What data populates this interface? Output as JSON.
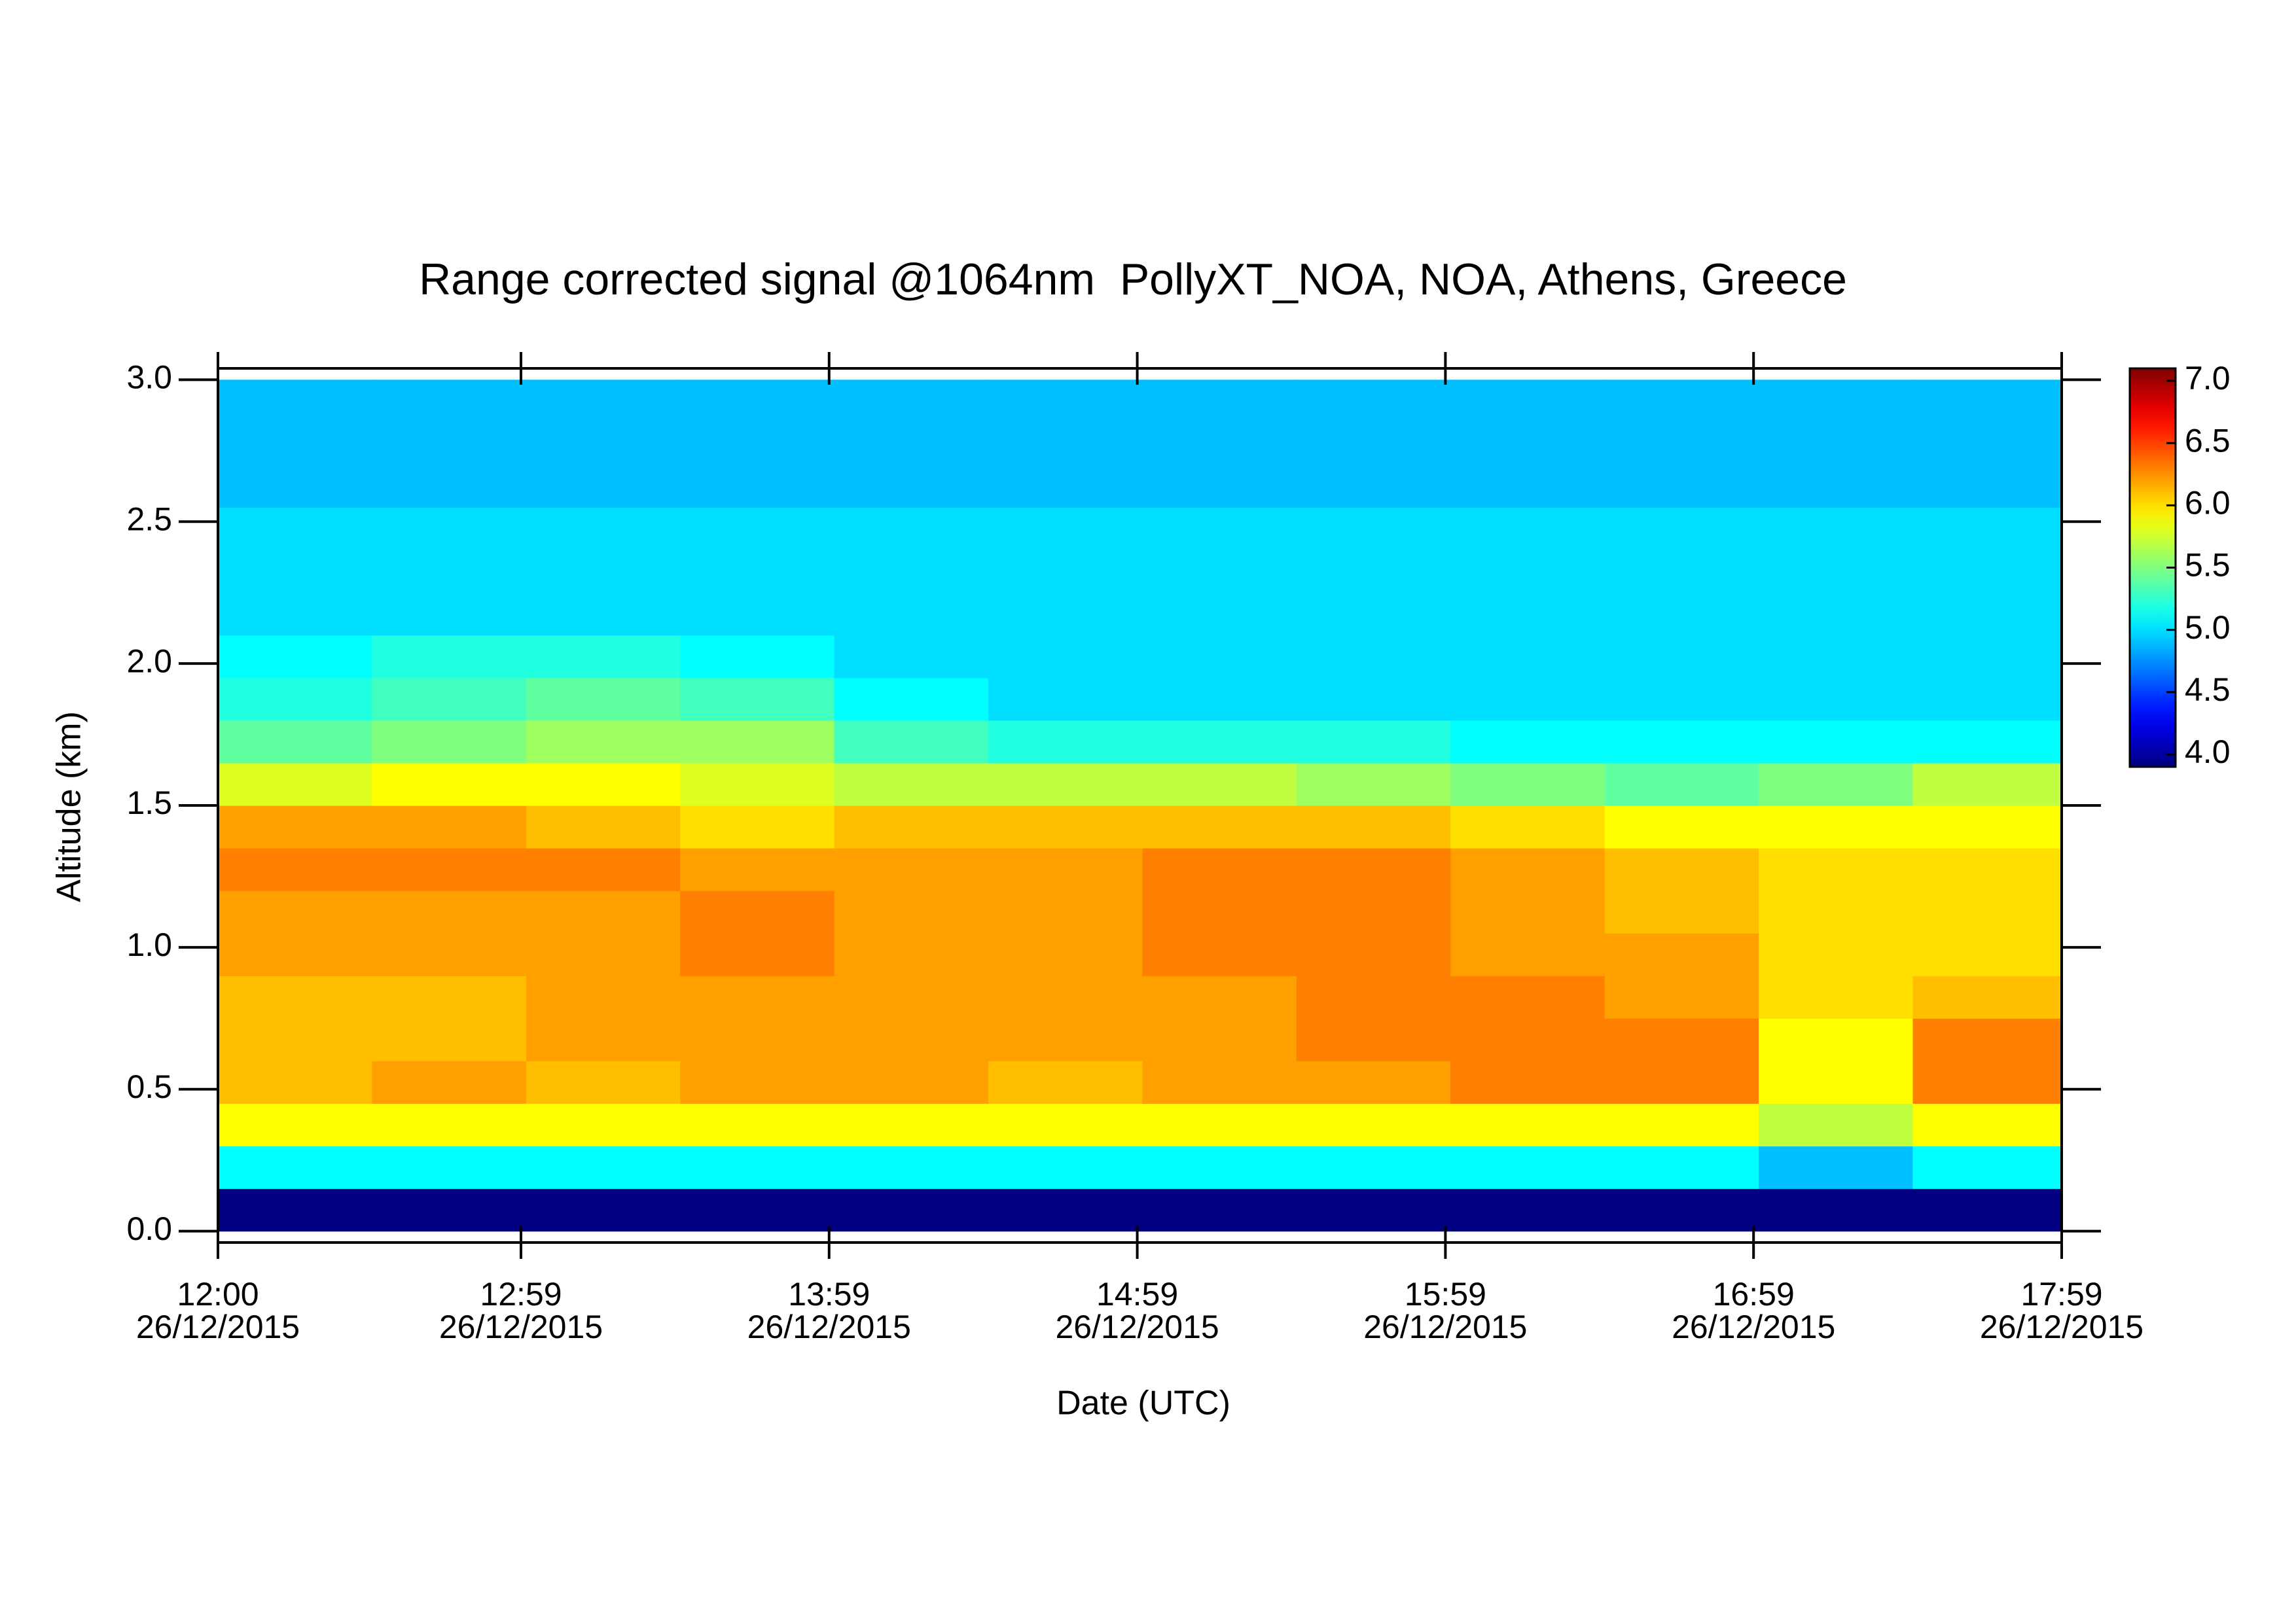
{
  "chart_data": {
    "type": "heatmap",
    "title": "Range corrected signal @1064nm  PollyXT_NOA, NOA, Athens, Greece",
    "x_label": "Date (UTC)",
    "y_label": "Altitude (km)",
    "colormap": "jet",
    "x": [
      "2015-12-26T12:15",
      "2015-12-26T12:45",
      "2015-12-26T13:15",
      "2015-12-26T13:45",
      "2015-12-26T14:15",
      "2015-12-26T14:45",
      "2015-12-26T15:15",
      "2015-12-26T15:45",
      "2015-12-26T16:15",
      "2015-12-26T16:45",
      "2015-12-26T17:15",
      "2015-12-26T17:45"
    ],
    "y": [
      0.075,
      0.225,
      0.375,
      0.525,
      0.675,
      0.825,
      0.975,
      1.125,
      1.275,
      1.425,
      1.575,
      1.725,
      1.875,
      2.025,
      2.175,
      2.325,
      2.475,
      2.625,
      2.775,
      2.925
    ],
    "z": [
      [
        3.9,
        3.9,
        3.9,
        3.9,
        3.9,
        3.9,
        3.9,
        3.9,
        3.9,
        3.9,
        3.9,
        3.9
      ],
      [
        5.1,
        5.1,
        5.1,
        5.1,
        5.1,
        5.1,
        5.1,
        5.1,
        5.1,
        5.1,
        4.9,
        5.1
      ],
      [
        5.9,
        5.9,
        5.9,
        5.9,
        5.9,
        5.9,
        5.9,
        5.9,
        5.9,
        5.9,
        5.7,
        5.9
      ],
      [
        6.1,
        6.2,
        6.1,
        6.2,
        6.2,
        6.1,
        6.2,
        6.2,
        6.3,
        6.3,
        5.9,
        6.3
      ],
      [
        6.1,
        6.1,
        6.2,
        6.2,
        6.2,
        6.2,
        6.2,
        6.3,
        6.3,
        6.3,
        5.9,
        6.3
      ],
      [
        6.1,
        6.1,
        6.2,
        6.2,
        6.2,
        6.2,
        6.2,
        6.3,
        6.3,
        6.2,
        6.0,
        6.1
      ],
      [
        6.2,
        6.2,
        6.2,
        6.3,
        6.2,
        6.2,
        6.3,
        6.3,
        6.2,
        6.2,
        6.0,
        6.0
      ],
      [
        6.2,
        6.2,
        6.2,
        6.3,
        6.2,
        6.2,
        6.3,
        6.3,
        6.2,
        6.1,
        6.0,
        6.0
      ],
      [
        6.3,
        6.3,
        6.3,
        6.2,
        6.2,
        6.2,
        6.3,
        6.3,
        6.2,
        6.1,
        6.0,
        6.0
      ],
      [
        6.2,
        6.2,
        6.1,
        6.0,
        6.1,
        6.1,
        6.1,
        6.1,
        6.0,
        5.9,
        5.9,
        5.9
      ],
      [
        5.8,
        5.9,
        5.9,
        5.8,
        5.7,
        5.7,
        5.7,
        5.6,
        5.5,
        5.4,
        5.5,
        5.7
      ],
      [
        5.4,
        5.5,
        5.6,
        5.6,
        5.3,
        5.2,
        5.2,
        5.2,
        5.1,
        5.1,
        5.1,
        5.1
      ],
      [
        5.2,
        5.3,
        5.4,
        5.3,
        5.1,
        5.0,
        5.0,
        5.0,
        5.0,
        5.0,
        5.0,
        5.0
      ],
      [
        5.1,
        5.2,
        5.2,
        5.1,
        5.0,
        5.0,
        5.0,
        5.0,
        5.0,
        5.0,
        5.0,
        5.0
      ],
      [
        5.0,
        5.0,
        5.0,
        5.0,
        5.0,
        5.0,
        5.0,
        5.0,
        5.0,
        5.0,
        5.0,
        5.0
      ],
      [
        5.0,
        5.0,
        5.0,
        5.0,
        5.0,
        5.0,
        5.0,
        5.0,
        5.0,
        5.0,
        5.0,
        5.0
      ],
      [
        5.0,
        5.0,
        5.0,
        5.0,
        5.0,
        5.0,
        5.0,
        5.0,
        5.0,
        5.0,
        5.0,
        5.0
      ],
      [
        4.9,
        4.9,
        4.9,
        4.9,
        4.9,
        4.9,
        4.9,
        4.9,
        4.9,
        4.9,
        4.9,
        4.9
      ],
      [
        4.9,
        4.9,
        4.9,
        4.9,
        4.9,
        4.9,
        4.9,
        4.9,
        4.9,
        4.9,
        4.9,
        4.9
      ],
      [
        4.9,
        4.9,
        4.9,
        4.9,
        4.9,
        4.9,
        4.9,
        4.9,
        4.9,
        4.9,
        4.9,
        4.9
      ]
    ],
    "xlim": [
      "2015-12-26T12:00",
      "2015-12-26T17:59"
    ],
    "xticks": [
      {
        "value": "2015-12-26T12:00",
        "label": [
          "12:00",
          "26/12/2015"
        ]
      },
      {
        "value": "2015-12-26T12:59",
        "label": [
          "12:59",
          "26/12/2015"
        ]
      },
      {
        "value": "2015-12-26T13:59",
        "label": [
          "13:59",
          "26/12/2015"
        ]
      },
      {
        "value": "2015-12-26T14:59",
        "label": [
          "14:59",
          "26/12/2015"
        ]
      },
      {
        "value": "2015-12-26T15:59",
        "label": [
          "15:59",
          "26/12/2015"
        ]
      },
      {
        "value": "2015-12-26T16:59",
        "label": [
          "16:59",
          "26/12/2015"
        ]
      },
      {
        "value": "2015-12-26T17:59",
        "label": [
          "17:59",
          "26/12/2015"
        ]
      }
    ],
    "ylim": [
      -0.04,
      3.04
    ],
    "yticks": [
      {
        "value": 0,
        "label": "0.0"
      },
      0.5,
      {
        "value": 1,
        "label": "1.0"
      },
      1.5,
      {
        "value": 2,
        "label": "2.0"
      },
      2.5,
      {
        "value": 3,
        "label": "3.0"
      }
    ],
    "zlim": [
      3.9,
      7.1
    ],
    "zticks": [
      {
        "value": 4,
        "label": "4.0"
      },
      4.5,
      {
        "value": 5,
        "label": "5.0"
      },
      5.5,
      {
        "value": 6,
        "label": "6.0"
      },
      6.5,
      {
        "value": 7,
        "label": "7.0"
      }
    ]
  }
}
